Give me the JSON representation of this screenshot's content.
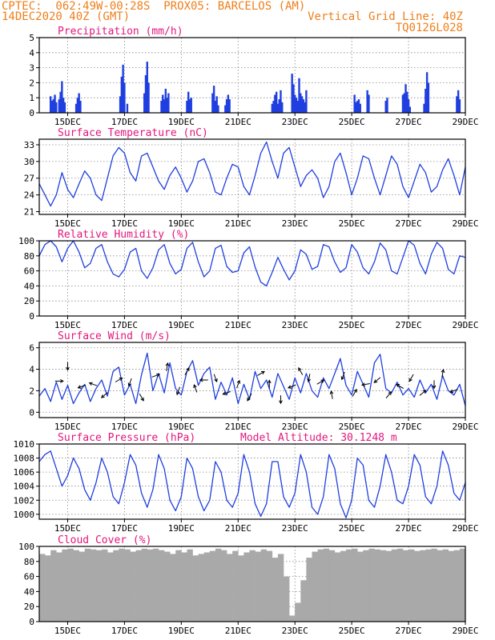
{
  "header": {
    "line1": "CPTEC:  062:49W-00:28S  PROX05: BARCELOS (AM)",
    "line2_left": "14DEC2020 40Z (GMT)",
    "line2_right": "Vertical Grid Line: 40Z",
    "line3_right": "TQ0126L028"
  },
  "colors": {
    "line": "#1f3fe0",
    "title": "#e2177d",
    "header": "#ee7f1c",
    "cloud": "#a9a9a9",
    "grid": "#888888",
    "arrow": "#000000"
  },
  "x_axis": {
    "labels": [
      "15DEC",
      "17DEC",
      "19DEC",
      "21DEC",
      "23DEC",
      "25DEC",
      "27DEC",
      "29DEC"
    ],
    "label_days": [
      15,
      17,
      19,
      21,
      23,
      25,
      27,
      29
    ],
    "range_days": [
      14,
      29
    ]
  },
  "chart_data": [
    {
      "type": "bar",
      "title": "Precipitation (mm/h)",
      "ylim": [
        0,
        5
      ],
      "yticks": [
        0,
        1,
        2,
        3,
        4,
        5
      ],
      "x_days": [
        14.4,
        14.45,
        14.5,
        14.55,
        14.6,
        14.7,
        14.75,
        14.8,
        14.85,
        14.9,
        15.3,
        15.35,
        15.4,
        15.45,
        16.85,
        16.9,
        16.95,
        17.0,
        17.1,
        17.7,
        17.75,
        17.8,
        17.85,
        18.3,
        18.35,
        18.4,
        18.45,
        18.5,
        18.55,
        19.2,
        19.25,
        19.3,
        19.35,
        20.1,
        20.15,
        20.2,
        20.25,
        20.3,
        20.55,
        20.6,
        20.65,
        20.7,
        22.2,
        22.25,
        22.3,
        22.35,
        22.4,
        22.45,
        22.5,
        22.55,
        22.9,
        22.95,
        23.0,
        23.05,
        23.1,
        23.15,
        23.2,
        23.25,
        23.3,
        23.35,
        23.4,
        25.1,
        25.15,
        25.2,
        25.25,
        25.3,
        25.55,
        25.6,
        26.2,
        26.25,
        26.8,
        26.85,
        26.9,
        26.95,
        27.0,
        27.05,
        27.55,
        27.6,
        27.65,
        27.7,
        28.7,
        28.75,
        28.8
      ],
      "values": [
        1.1,
        0.8,
        0.9,
        1.2,
        0.7,
        0.9,
        1.4,
        2.1,
        1.0,
        0.7,
        0.6,
        1.0,
        1.3,
        0.8,
        1.1,
        2.4,
        3.2,
        2.0,
        0.6,
        1.3,
        2.5,
        3.4,
        2.0,
        0.8,
        1.2,
        0.9,
        1.6,
        1.0,
        1.3,
        0.8,
        1.4,
        0.9,
        1.0,
        1.3,
        1.8,
        0.8,
        1.1,
        0.5,
        0.5,
        0.9,
        1.2,
        0.9,
        0.6,
        0.8,
        1.2,
        1.4,
        0.6,
        0.9,
        1.5,
        0.7,
        2.6,
        1.9,
        1.2,
        1.0,
        0.8,
        2.3,
        1.3,
        1.1,
        0.9,
        0.7,
        1.5,
        1.2,
        0.7,
        0.8,
        0.9,
        0.6,
        1.5,
        1.2,
        0.8,
        1.0,
        1.2,
        1.3,
        1.9,
        1.4,
        0.9,
        0.4,
        0.6,
        1.6,
        2.7,
        2.0,
        1.1,
        1.5,
        0.9
      ]
    },
    {
      "type": "line",
      "title": "Surface Temperature (nC)",
      "ylim": [
        20.5,
        34
      ],
      "yticks": [
        21,
        24,
        27,
        30,
        33
      ],
      "x_days": [
        14.0,
        14.2,
        14.4,
        14.6,
        14.8,
        15.0,
        15.2,
        15.4,
        15.6,
        15.8,
        16.0,
        16.2,
        16.4,
        16.6,
        16.8,
        17.0,
        17.2,
        17.4,
        17.6,
        17.8,
        18.0,
        18.2,
        18.4,
        18.6,
        18.8,
        19.0,
        19.2,
        19.4,
        19.6,
        19.8,
        20.0,
        20.2,
        20.4,
        20.6,
        20.8,
        21.0,
        21.2,
        21.4,
        21.6,
        21.8,
        22.0,
        22.2,
        22.4,
        22.6,
        22.8,
        23.0,
        23.2,
        23.4,
        23.6,
        23.8,
        24.0,
        24.2,
        24.4,
        24.6,
        24.8,
        25.0,
        25.2,
        25.4,
        25.6,
        25.8,
        26.0,
        26.2,
        26.4,
        26.6,
        26.8,
        27.0,
        27.2,
        27.4,
        27.6,
        27.8,
        28.0,
        28.2,
        28.4,
        28.6,
        28.8,
        29.0
      ],
      "values": [
        26.0,
        24.0,
        22.0,
        24.0,
        28.0,
        25.0,
        23.5,
        26.0,
        28.3,
        27.0,
        24.0,
        23.0,
        27.0,
        31.0,
        32.5,
        31.5,
        28.0,
        26.5,
        31.0,
        31.5,
        29.0,
        26.5,
        25.0,
        27.5,
        29.0,
        27.0,
        24.5,
        26.5,
        30.0,
        30.5,
        28.0,
        24.5,
        24.0,
        27.0,
        29.5,
        29.0,
        25.5,
        24.0,
        27.5,
        31.5,
        33.5,
        30.0,
        27.0,
        31.5,
        32.5,
        29.0,
        25.5,
        27.5,
        28.5,
        27.0,
        23.5,
        25.5,
        30.0,
        31.5,
        28.0,
        24.0,
        27.0,
        31.0,
        30.5,
        27.0,
        24.0,
        27.5,
        31.0,
        29.5,
        25.5,
        23.5,
        26.5,
        29.5,
        28.0,
        24.5,
        25.5,
        28.5,
        30.5,
        27.5,
        24.0,
        29.0
      ]
    },
    {
      "type": "line",
      "title": "Relative Humidity (%)",
      "ylim": [
        0,
        100
      ],
      "yticks": [
        0,
        20,
        40,
        60,
        80,
        100
      ],
      "x_days": [
        14.0,
        14.2,
        14.4,
        14.6,
        14.8,
        15.0,
        15.2,
        15.4,
        15.6,
        15.8,
        16.0,
        16.2,
        16.4,
        16.6,
        16.8,
        17.0,
        17.2,
        17.4,
        17.6,
        17.8,
        18.0,
        18.2,
        18.4,
        18.6,
        18.8,
        19.0,
        19.2,
        19.4,
        19.6,
        19.8,
        20.0,
        20.2,
        20.4,
        20.6,
        20.8,
        21.0,
        21.2,
        21.4,
        21.6,
        21.8,
        22.0,
        22.2,
        22.4,
        22.6,
        22.8,
        23.0,
        23.2,
        23.4,
        23.6,
        23.8,
        24.0,
        24.2,
        24.4,
        24.6,
        24.8,
        25.0,
        25.2,
        25.4,
        25.6,
        25.8,
        26.0,
        26.2,
        26.4,
        26.6,
        26.8,
        27.0,
        27.2,
        27.4,
        27.6,
        27.8,
        28.0,
        28.2,
        28.4,
        28.6,
        28.8,
        29.0
      ],
      "values": [
        80,
        95,
        100,
        92,
        72,
        90,
        100,
        85,
        64,
        70,
        90,
        95,
        72,
        56,
        52,
        62,
        85,
        90,
        60,
        50,
        64,
        88,
        95,
        70,
        56,
        62,
        90,
        98,
        72,
        52,
        60,
        90,
        94,
        66,
        58,
        60,
        84,
        92,
        65,
        45,
        40,
        58,
        78,
        62,
        48,
        60,
        88,
        82,
        62,
        66,
        95,
        92,
        72,
        58,
        64,
        95,
        85,
        64,
        56,
        72,
        97,
        88,
        60,
        56,
        78,
        100,
        94,
        70,
        56,
        82,
        98,
        90,
        62,
        56,
        80,
        78
      ]
    },
    {
      "type": "line",
      "title": "Surface Wind (m/s)",
      "ylim": [
        -0.5,
        6.5
      ],
      "yticks": [
        0,
        2,
        4,
        6
      ],
      "x_days": [
        14.0,
        14.2,
        14.4,
        14.6,
        14.8,
        15.0,
        15.2,
        15.4,
        15.6,
        15.8,
        16.0,
        16.2,
        16.4,
        16.6,
        16.8,
        17.0,
        17.2,
        17.4,
        17.6,
        17.8,
        18.0,
        18.2,
        18.4,
        18.6,
        18.8,
        19.0,
        19.2,
        19.4,
        19.6,
        19.8,
        20.0,
        20.2,
        20.4,
        20.6,
        20.8,
        21.0,
        21.2,
        21.4,
        21.6,
        21.8,
        22.0,
        22.2,
        22.4,
        22.6,
        22.8,
        23.0,
        23.2,
        23.4,
        23.6,
        23.8,
        24.0,
        24.2,
        24.4,
        24.6,
        24.8,
        25.0,
        25.2,
        25.4,
        25.6,
        25.8,
        26.0,
        26.2,
        26.4,
        26.6,
        26.8,
        27.0,
        27.2,
        27.4,
        27.6,
        27.8,
        28.0,
        28.2,
        28.4,
        28.6,
        28.8,
        29.0
      ],
      "values": [
        1.5,
        2.2,
        1.0,
        2.8,
        1.2,
        2.5,
        0.8,
        1.8,
        2.6,
        1.0,
        2.2,
        3.0,
        1.5,
        3.8,
        4.2,
        1.6,
        2.6,
        0.8,
        3.5,
        5.5,
        2.0,
        3.6,
        1.8,
        4.6,
        2.2,
        1.6,
        3.8,
        4.8,
        2.5,
        3.6,
        4.2,
        1.2,
        2.8,
        1.6,
        3.2,
        0.8,
        2.6,
        1.2,
        3.8,
        2.2,
        3.0,
        1.4,
        3.6,
        2.4,
        1.2,
        3.2,
        1.8,
        3.6,
        2.0,
        1.4,
        3.2,
        2.2,
        3.6,
        5.0,
        2.5,
        1.6,
        3.8,
        2.6,
        1.4,
        4.6,
        5.4,
        2.2,
        1.8,
        2.8,
        1.6,
        2.2,
        1.4,
        3.0,
        1.8,
        2.6,
        1.2,
        3.4,
        2.0,
        1.6,
        2.6,
        0.6
      ],
      "arrows_days": [
        14.7,
        15.0,
        15.5,
        15.9,
        16.3,
        16.8,
        17.2,
        17.6,
        18.1,
        18.5,
        18.9,
        19.2,
        19.5,
        19.8,
        20.2,
        20.6,
        21.0,
        21.4,
        21.8,
        22.1,
        22.5,
        22.9,
        23.2,
        23.5,
        23.9,
        24.3,
        24.7,
        25.1,
        25.5,
        25.9,
        26.3,
        26.7,
        27.1,
        27.5,
        27.9,
        28.2,
        28.6
      ],
      "arrows_speed": [
        2.9,
        4.3,
        2.4,
        2.6,
        1.6,
        3.0,
        2.8,
        1.4,
        3.4,
        4.2,
        2.0,
        3.8,
        2.2,
        3.0,
        3.2,
        1.8,
        2.6,
        1.4,
        3.6,
        2.6,
        1.2,
        2.4,
        3.8,
        3.2,
        2.8,
        1.6,
        3.4,
        1.8,
        2.6,
        3.0,
        1.6,
        2.4,
        3.2,
        1.8,
        2.6,
        3.6,
        2.0
      ],
      "arrows_dir": [
        0,
        270,
        200,
        160,
        220,
        30,
        250,
        300,
        20,
        80,
        250,
        60,
        110,
        180,
        290,
        200,
        70,
        240,
        30,
        90,
        270,
        200,
        120,
        260,
        30,
        100,
        250,
        60,
        190,
        220,
        50,
        150,
        240,
        40,
        270,
        80,
        200
      ]
    },
    {
      "type": "line",
      "title": "Surface Pressure (hPa)",
      "annotation": "Model Altitude: 30.1248 m",
      "ylim": [
        999.3,
        1010
      ],
      "yticks": [
        1000,
        1002,
        1004,
        1006,
        1008,
        1010
      ],
      "x_days": [
        14.0,
        14.2,
        14.4,
        14.6,
        14.8,
        15.0,
        15.2,
        15.4,
        15.6,
        15.8,
        16.0,
        16.2,
        16.4,
        16.6,
        16.8,
        17.0,
        17.2,
        17.4,
        17.6,
        17.8,
        18.0,
        18.2,
        18.4,
        18.6,
        18.8,
        19.0,
        19.2,
        19.4,
        19.6,
        19.8,
        20.0,
        20.2,
        20.4,
        20.6,
        20.8,
        21.0,
        21.2,
        21.4,
        21.6,
        21.8,
        22.0,
        22.2,
        22.4,
        22.6,
        22.8,
        23.0,
        23.2,
        23.4,
        23.6,
        23.8,
        24.0,
        24.2,
        24.4,
        24.6,
        24.8,
        25.0,
        25.2,
        25.4,
        25.6,
        25.8,
        26.0,
        26.2,
        26.4,
        26.6,
        26.8,
        27.0,
        27.2,
        27.4,
        27.6,
        27.8,
        28.0,
        28.2,
        28.4,
        28.6,
        28.8,
        29.0
      ],
      "values": [
        1007.5,
        1008.5,
        1009.0,
        1006.5,
        1004.0,
        1005.5,
        1008.0,
        1006.5,
        1003.5,
        1002.0,
        1004.5,
        1008.0,
        1006.0,
        1002.5,
        1001.5,
        1004.5,
        1008.5,
        1007.0,
        1003.0,
        1001.0,
        1003.5,
        1008.5,
        1006.5,
        1002.0,
        1000.5,
        1002.5,
        1008.0,
        1006.5,
        1002.5,
        1000.5,
        1002.0,
        1007.5,
        1006.0,
        1002.0,
        1001.0,
        1003.0,
        1008.5,
        1006.0,
        1001.5,
        999.7,
        1001.5,
        1007.5,
        1007.5,
        1002.5,
        1001.0,
        1003.0,
        1008.5,
        1006.0,
        1001.0,
        1000.0,
        1002.5,
        1008.5,
        1006.5,
        1001.5,
        999.5,
        1002.0,
        1008.0,
        1007.0,
        1002.0,
        1001.0,
        1004.0,
        1008.5,
        1006.0,
        1002.0,
        1001.5,
        1004.0,
        1008.5,
        1007.0,
        1002.5,
        1001.5,
        1004.0,
        1009.0,
        1007.0,
        1003.0,
        1002.0,
        1004.5
      ]
    },
    {
      "type": "area",
      "title": "Cloud Cover (%)",
      "ylim": [
        0,
        100
      ],
      "yticks": [
        0,
        20,
        40,
        60,
        80,
        100
      ],
      "x_days": [
        14.0,
        14.2,
        14.4,
        14.6,
        14.8,
        15.0,
        15.2,
        15.4,
        15.6,
        15.8,
        16.0,
        16.2,
        16.4,
        16.6,
        16.8,
        17.0,
        17.2,
        17.4,
        17.6,
        17.8,
        18.0,
        18.2,
        18.4,
        18.6,
        18.8,
        19.0,
        19.2,
        19.4,
        19.6,
        19.8,
        20.0,
        20.2,
        20.4,
        20.6,
        20.8,
        21.0,
        21.2,
        21.4,
        21.6,
        21.8,
        22.0,
        22.2,
        22.4,
        22.6,
        22.8,
        23.0,
        23.2,
        23.4,
        23.6,
        23.8,
        24.0,
        24.2,
        24.4,
        24.6,
        24.8,
        25.0,
        25.2,
        25.4,
        25.6,
        25.8,
        26.0,
        26.2,
        26.4,
        26.6,
        26.8,
        27.0,
        27.2,
        27.4,
        27.6,
        27.8,
        28.0,
        28.2,
        28.4,
        28.6,
        28.8,
        29.0
      ],
      "values": [
        90,
        88,
        95,
        92,
        96,
        97,
        95,
        93,
        97,
        96,
        95,
        96,
        92,
        95,
        97,
        96,
        93,
        95,
        97,
        96,
        97,
        95,
        93,
        90,
        95,
        92,
        96,
        88,
        90,
        92,
        94,
        97,
        95,
        90,
        94,
        88,
        92,
        95,
        93,
        96,
        94,
        85,
        90,
        60,
        8,
        25,
        55,
        85,
        93,
        96,
        97,
        95,
        92,
        94,
        96,
        97,
        93,
        95,
        97,
        96,
        95,
        94,
        96,
        97,
        95,
        96,
        94,
        95,
        96,
        97,
        95,
        96,
        94,
        95,
        97,
        96
      ]
    }
  ]
}
